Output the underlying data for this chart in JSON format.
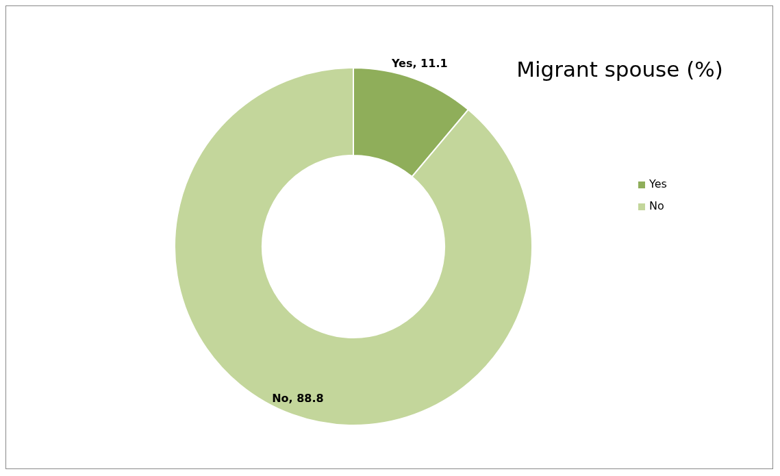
{
  "chart_data": {
    "type": "donut",
    "title": "Migrant spouse (%)",
    "categories": [
      "Yes",
      "No"
    ],
    "values": [
      11.1,
      88.8
    ],
    "colors": [
      "#8fae5a",
      "#c3d69b"
    ],
    "value_labels": [
      "Yes, 11.1",
      "No, 88.8"
    ],
    "legend": "right"
  }
}
